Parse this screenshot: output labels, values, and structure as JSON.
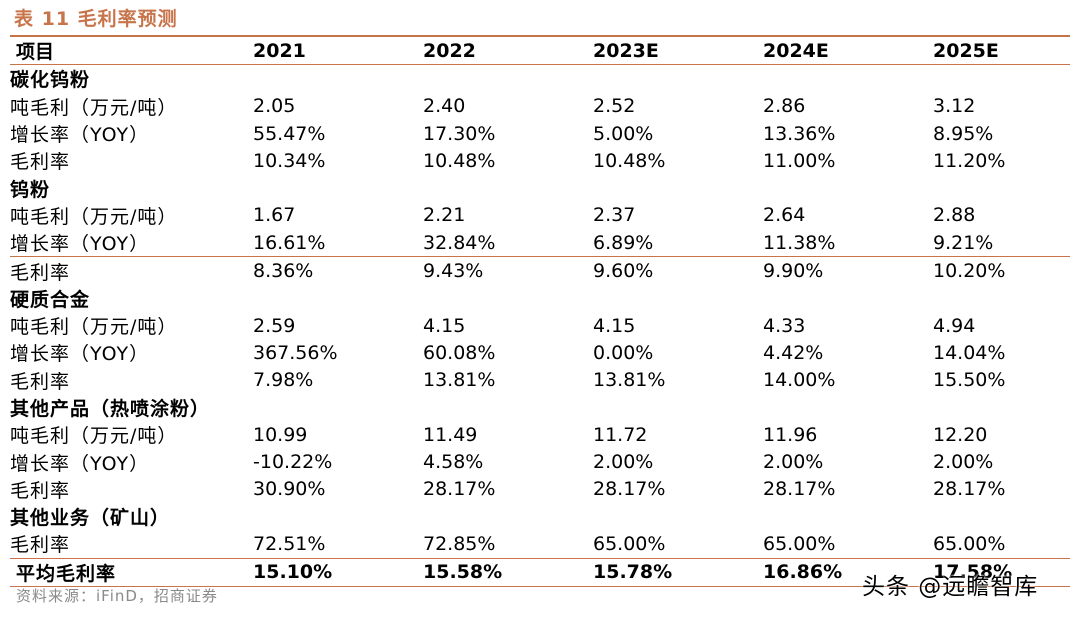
{
  "title": "表 11 毛利率预测",
  "header": {
    "label": "项目",
    "years": [
      "2021",
      "2022",
      "2023E",
      "2024E",
      "2025E"
    ]
  },
  "sections": [
    {
      "name": "碳化钨粉",
      "rows": [
        {
          "label": "吨毛利（万元/吨）",
          "values": [
            "2.05",
            "2.40",
            "2.52",
            "2.86",
            "3.12"
          ]
        },
        {
          "label": "增长率（YOY）",
          "values": [
            "55.47%",
            "17.30%",
            "5.00%",
            "13.36%",
            "8.95%"
          ]
        },
        {
          "label": "毛利率",
          "values": [
            "10.34%",
            "10.48%",
            "10.48%",
            "11.00%",
            "11.20%"
          ]
        }
      ]
    },
    {
      "name": "钨粉",
      "rows": [
        {
          "label": "吨毛利（万元/吨）",
          "values": [
            "1.67",
            "2.21",
            "2.37",
            "2.64",
            "2.88"
          ]
        },
        {
          "label": "增长率（YOY）",
          "values": [
            "16.61%",
            "32.84%",
            "6.89%",
            "11.38%",
            "9.21%"
          ]
        },
        {
          "label": "毛利率",
          "values": [
            "8.36%",
            "9.43%",
            "9.60%",
            "9.90%",
            "10.20%"
          ]
        }
      ]
    },
    {
      "name": "硬质合金",
      "rows": [
        {
          "label": "吨毛利（万元/吨）",
          "values": [
            "2.59",
            "4.15",
            "4.15",
            "4.33",
            "4.94"
          ]
        },
        {
          "label": "增长率（YOY）",
          "values": [
            "367.56%",
            "60.08%",
            "0.00%",
            "4.42%",
            "14.04%"
          ]
        },
        {
          "label": "毛利率",
          "values": [
            "7.98%",
            "13.81%",
            "13.81%",
            "14.00%",
            "15.50%"
          ]
        }
      ]
    },
    {
      "name": "其他产品（热喷涂粉）",
      "rows": [
        {
          "label": "吨毛利（万元/吨）",
          "values": [
            "10.99",
            "11.49",
            "11.72",
            "11.96",
            "12.20"
          ]
        },
        {
          "label": "增长率（YOY）",
          "values": [
            "-10.22%",
            "4.58%",
            "2.00%",
            "2.00%",
            "2.00%"
          ]
        },
        {
          "label": "毛利率",
          "values": [
            "30.90%",
            "28.17%",
            "28.17%",
            "28.17%",
            "28.17%"
          ]
        }
      ]
    },
    {
      "name": "其他业务（矿山）",
      "rows": [
        {
          "label": "毛利率",
          "values": [
            "72.51%",
            "72.85%",
            "65.00%",
            "65.00%",
            "65.00%"
          ]
        }
      ]
    }
  ],
  "average": {
    "label": "平均毛利率",
    "values": [
      "15.10%",
      "15.58%",
      "15.78%",
      "16.86%",
      "17.58%"
    ]
  },
  "source": "资料来源：iFinD，招商证券",
  "watermark": "头条 @远瞻智库"
}
